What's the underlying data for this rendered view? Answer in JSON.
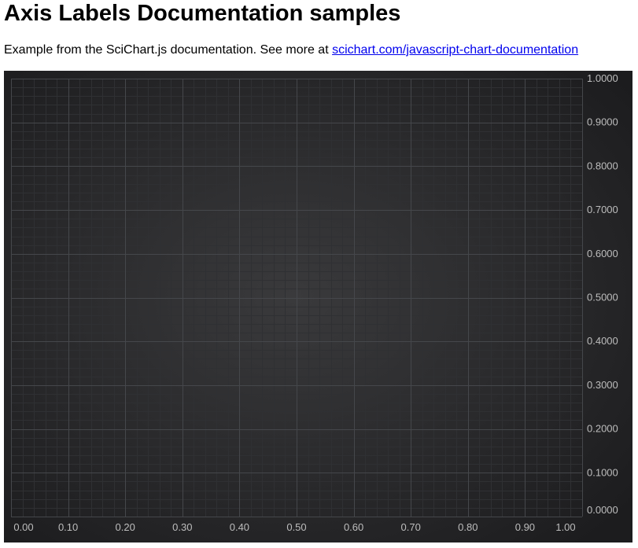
{
  "page": {
    "title": "Axis Labels Documentation samples",
    "intro_text": "Example from the SciChart.js documentation. See more at ",
    "link_text": "scichart.com/javascript-chart-documentation"
  },
  "colors": {
    "chart_background_center": "#3a3a3c",
    "chart_background_edge": "#1c1c1e",
    "major_gridline": "#45474b",
    "minor_gridline": "#2f3033",
    "tick_label": "#bdbdbd"
  },
  "chart_data": {
    "type": "line",
    "title": "",
    "xlabel": "",
    "ylabel": "",
    "series": [],
    "xlim": [
      0,
      1
    ],
    "ylim": [
      0,
      1
    ],
    "x_ticks": [
      "0.00",
      "0.10",
      "0.20",
      "0.30",
      "0.40",
      "0.50",
      "0.60",
      "0.70",
      "0.80",
      "0.90",
      "1.00"
    ],
    "y_ticks": [
      "0.0000",
      "0.1000",
      "0.2000",
      "0.3000",
      "0.4000",
      "0.5000",
      "0.6000",
      "0.7000",
      "0.8000",
      "0.9000",
      "1.0000"
    ],
    "x_axis_position": "bottom",
    "y_axis_position": "right",
    "grid": true,
    "minor_grid": true
  }
}
